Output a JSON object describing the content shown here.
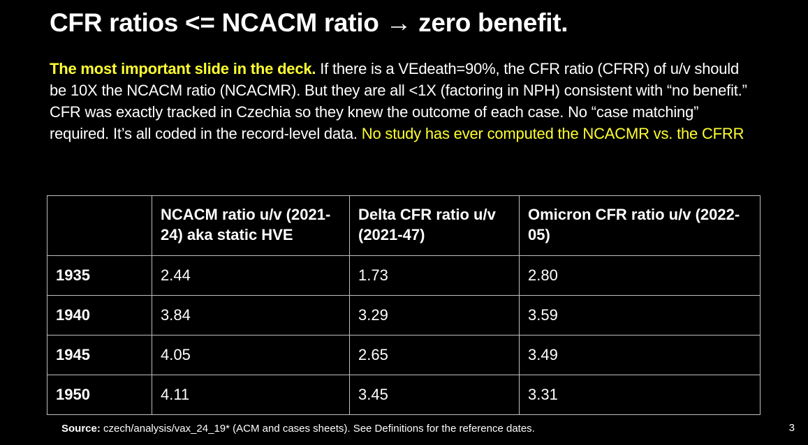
{
  "slide": {
    "title": "CFR ratios <= NCACM ratio → zero benefit.",
    "body": {
      "lead": "The most important slide in the deck.",
      "main": " If there is a VEdeath=90%, the CFR ratio (CFRR) of u/v should be 10X the NCACM ratio (NCACMR). But they are all <1X (factoring in NPH) consistent with “no benefit.” CFR was exactly tracked in Czechia so they knew the outcome of each case. No “case matching” required. It’s all coded in the record-level data. ",
      "highlight": "No study has ever computed the NCACMR vs. the CFRR"
    },
    "table": {
      "headers": [
        "",
        "NCACM ratio u/v (2021-24) aka static HVE",
        "Delta CFR ratio u/v (2021-47)",
        "Omicron CFR ratio u/v (2022-05)"
      ],
      "rows": [
        {
          "year": "1935",
          "ncacm": "2.44",
          "delta": "1.73",
          "omicron": "2.80"
        },
        {
          "year": "1940",
          "ncacm": "3.84",
          "delta": "3.29",
          "omicron": "3.59"
        },
        {
          "year": "1945",
          "ncacm": "4.05",
          "delta": "2.65",
          "omicron": "3.49"
        },
        {
          "year": "1950",
          "ncacm": "4.11",
          "delta": "3.45",
          "omicron": "3.31"
        }
      ]
    },
    "source": {
      "label": "Source:",
      "text": " czech/analysis/vax_24_19* (ACM and cases sheets). See Definitions for the reference dates."
    },
    "page_number": "3",
    "colors": {
      "background": "#000000",
      "text": "#ffffff",
      "highlight": "#ffff33",
      "table_border": "#bfbfbf"
    }
  }
}
